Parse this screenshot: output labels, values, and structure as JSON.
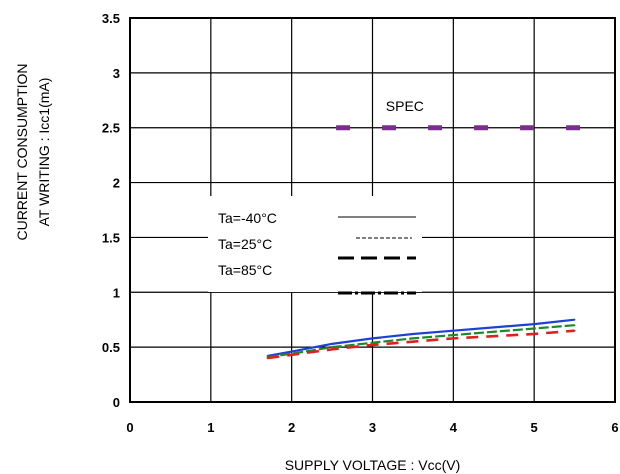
{
  "chart_data": {
    "type": "line",
    "xlabel": "SUPPLY VOLTAGE : Vcc(V)",
    "ylabel_line1": "CURRENT CONSUMPTION",
    "ylabel_line2": "AT WRITING : Icc1(mA)",
    "xlim": [
      0,
      6
    ],
    "ylim": [
      0,
      3.5
    ],
    "x_ticks": [
      "0",
      "1",
      "2",
      "3",
      "4",
      "5",
      "6"
    ],
    "y_ticks": [
      "0",
      "0.5",
      "1",
      "1.5",
      "2",
      "2.5",
      "3",
      "3.5"
    ],
    "grid": true,
    "legend_position": "left-middle",
    "legend": {
      "entries": [
        "Ta=-40°C",
        "Ta=25°C",
        "Ta=85°C"
      ]
    },
    "annotations": [
      {
        "text": "SPEC",
        "x": 3.4,
        "y": 2.7
      }
    ],
    "spec_line": {
      "y": 2.5,
      "x_range": [
        2.5,
        5.5
      ],
      "color": "#7b2d8e"
    },
    "series": [
      {
        "color": "#1f3fd6",
        "x": [
          1.7,
          2.0,
          2.5,
          3.0,
          3.5,
          4.0,
          4.5,
          5.0,
          5.5
        ],
        "y": [
          0.42,
          0.46,
          0.53,
          0.58,
          0.62,
          0.65,
          0.68,
          0.71,
          0.75
        ]
      },
      {
        "color": "#1a8a2a",
        "x": [
          1.7,
          2.0,
          2.5,
          3.0,
          3.5,
          4.0,
          4.5,
          5.0,
          5.5
        ],
        "y": [
          0.41,
          0.44,
          0.5,
          0.54,
          0.58,
          0.61,
          0.64,
          0.67,
          0.7
        ]
      },
      {
        "color": "#e02020",
        "x": [
          1.7,
          2.0,
          2.5,
          3.0,
          3.5,
          4.0,
          4.5,
          5.0,
          5.5
        ],
        "y": [
          0.4,
          0.43,
          0.48,
          0.52,
          0.55,
          0.58,
          0.6,
          0.62,
          0.65
        ]
      }
    ]
  }
}
